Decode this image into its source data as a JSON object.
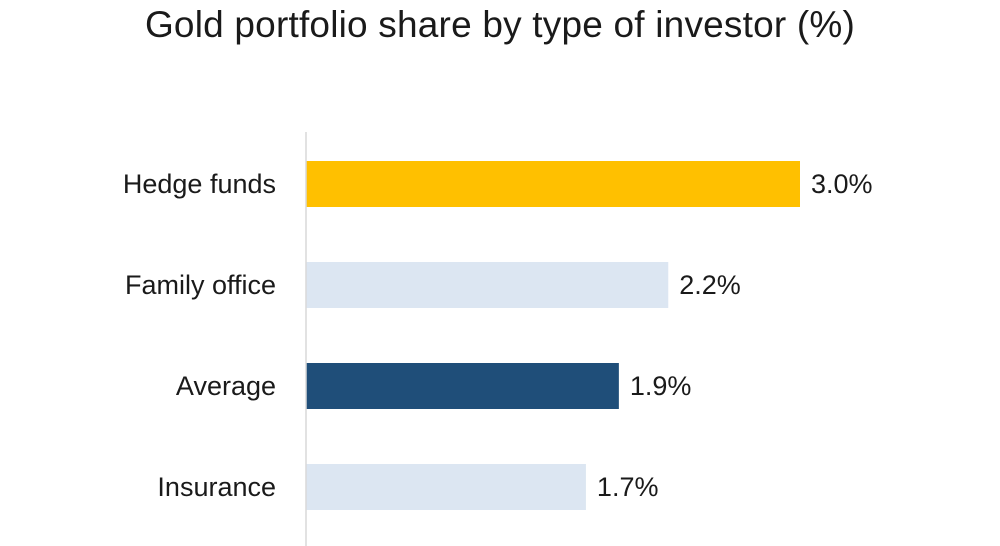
{
  "chart_data": {
    "type": "bar",
    "orientation": "horizontal",
    "title": "Gold portfolio share by type of investor (%)",
    "xlabel": "",
    "ylabel": "",
    "categories": [
      "Hedge funds",
      "Family office",
      "Average",
      "Insurance"
    ],
    "values": [
      3.0,
      2.2,
      1.9,
      1.7
    ],
    "value_labels": [
      "3.0%",
      "2.2%",
      "1.9%",
      "1.7%"
    ],
    "bar_colors": [
      "#ffc000",
      "#dce6f2",
      "#1f4e79",
      "#dce6f2"
    ],
    "xlim": [
      0,
      3.0
    ],
    "grid": false,
    "legend": "none"
  }
}
